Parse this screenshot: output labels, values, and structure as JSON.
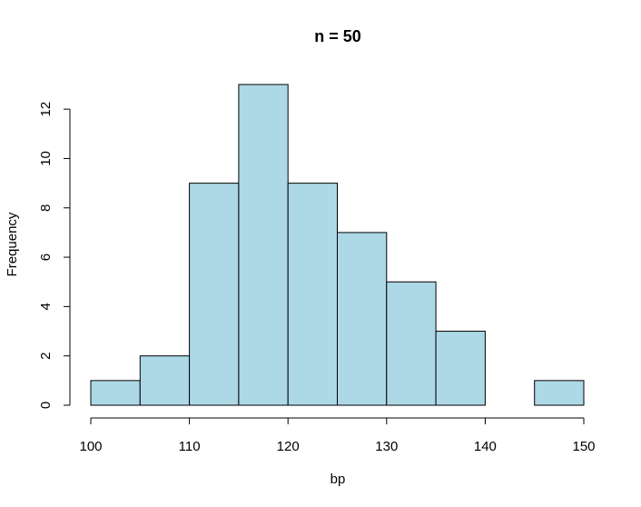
{
  "chart_data": {
    "type": "bar",
    "title": "n = 50",
    "xlabel": "bp",
    "ylabel": "Frequency",
    "bins": [
      {
        "start": 100,
        "end": 105,
        "count": 1
      },
      {
        "start": 105,
        "end": 110,
        "count": 2
      },
      {
        "start": 110,
        "end": 115,
        "count": 9
      },
      {
        "start": 115,
        "end": 120,
        "count": 13
      },
      {
        "start": 120,
        "end": 125,
        "count": 9
      },
      {
        "start": 125,
        "end": 130,
        "count": 7
      },
      {
        "start": 130,
        "end": 135,
        "count": 5
      },
      {
        "start": 135,
        "end": 140,
        "count": 3
      },
      {
        "start": 140,
        "end": 145,
        "count": 0
      },
      {
        "start": 145,
        "end": 150,
        "count": 1
      }
    ],
    "xlim": [
      100,
      150
    ],
    "ylim": [
      0,
      13
    ],
    "xticks": [
      100,
      110,
      120,
      130,
      140,
      150
    ],
    "yticks": [
      0,
      2,
      4,
      6,
      8,
      10,
      12
    ],
    "bar_color": "#add8e6",
    "grid": false,
    "legend": "none"
  }
}
